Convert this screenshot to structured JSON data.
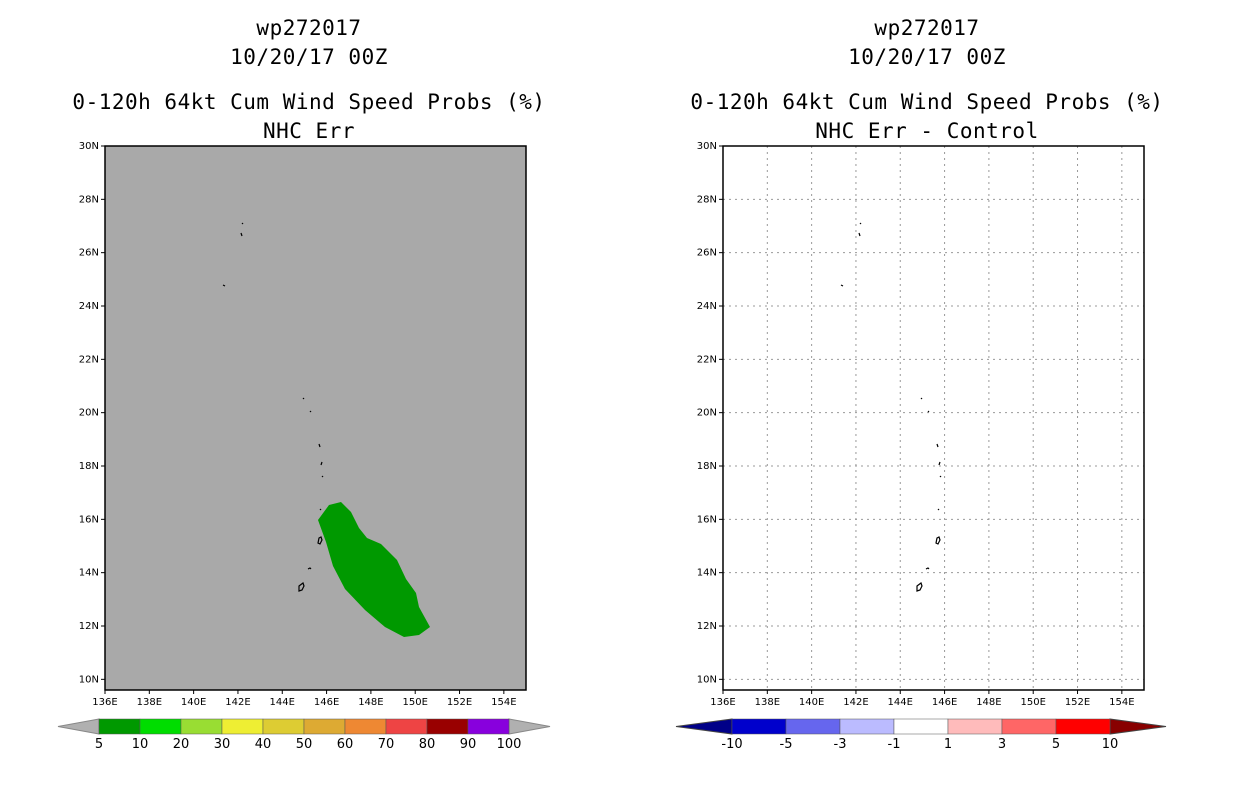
{
  "left_panel": {
    "storm_id": "wp272017",
    "datetime": "10/20/17 00Z",
    "product_title": "0-120h 64kt Cum Wind Speed Probs (%)",
    "subtitle": "NHC Err",
    "background_color": "#a9a9a9",
    "probability_area_color": "#009900"
  },
  "right_panel": {
    "storm_id": "wp272017",
    "datetime": "10/20/17 00Z",
    "product_title": "0-120h 64kt Cum Wind Speed Probs (%)",
    "subtitle": "NHC Err - Control",
    "background_color": "#ffffff"
  },
  "map_axes": {
    "lat_labels": [
      "30N",
      "28N",
      "26N",
      "24N",
      "22N",
      "20N",
      "18N",
      "16N",
      "14N",
      "12N",
      "10N"
    ],
    "lon_labels": [
      "136E",
      "138E",
      "140E",
      "142E",
      "144E",
      "146E",
      "148E",
      "150E",
      "152E",
      "154E"
    ]
  },
  "left_colorbar": {
    "labels": [
      "5",
      "10",
      "20",
      "30",
      "40",
      "50",
      "60",
      "70",
      "80",
      "90",
      "100"
    ],
    "colors": [
      "#009900",
      "#00dd00",
      "#99dd33",
      "#eeee33",
      "#ddcc33",
      "#ddaa33",
      "#ee8833",
      "#ee4444",
      "#990000",
      "#8800dd"
    ],
    "end_color": "#b0b0b0"
  },
  "right_colorbar": {
    "labels": [
      "-10",
      "-5",
      "-3",
      "-1",
      "1",
      "3",
      "5",
      "10"
    ],
    "colors": [
      "#0000cc",
      "#6666ee",
      "#bbbbff",
      "#ffffff",
      "#ffbbbb",
      "#ff6666",
      "#ff0000"
    ],
    "low_end_color": "#000088",
    "high_end_color": "#880000"
  }
}
